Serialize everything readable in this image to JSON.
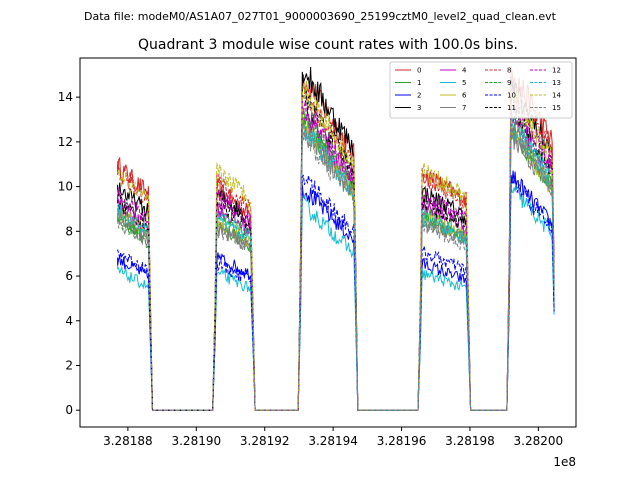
{
  "figure": {
    "suptitle": "Data file: modeM0/AS1A07_027T01_9000003690_25199cztM0_level2_quad_clean.evt",
    "title": "Quadrant 3 module wise count rates with 100.0s bins.",
    "x_offset_label": "1e8"
  },
  "chart_data": {
    "type": "line",
    "title": "Quadrant 3 module wise count rates with 100.0s bins.",
    "xlabel": "",
    "ylabel": "",
    "x_offset": "1e8",
    "xlim": [
      3.281866,
      3.282011
    ],
    "ylim": [
      -0.75,
      15.75
    ],
    "x_ticks": [
      3.28188,
      3.2819,
      3.28192,
      3.28194,
      3.28196,
      3.28198,
      3.282
    ],
    "x_tick_labels": [
      "3.28188",
      "3.28190",
      "3.28192",
      "3.28194",
      "3.28196",
      "3.28198",
      "3.28200"
    ],
    "y_ticks": [
      0,
      2,
      4,
      6,
      8,
      10,
      12,
      14
    ],
    "y_tick_labels": [
      "0",
      "2",
      "4",
      "6",
      "8",
      "10",
      "12",
      "14"
    ],
    "grid": false,
    "legend_placement": "top-right",
    "legend_columns": 4,
    "segments": [
      [
        3.281877,
        3.281886
      ],
      [
        3.281906,
        3.281916
      ],
      [
        3.281931,
        3.281946
      ],
      [
        3.281966,
        3.281979
      ],
      [
        3.281992,
        3.282004
      ]
    ],
    "series": [
      {
        "name": "0",
        "color": "#d62728",
        "dash": false,
        "levels": [
          10.5,
          9.5,
          14.3,
          10.2,
          14.5
        ]
      },
      {
        "name": "1",
        "color": "#2ca02c",
        "dash": false,
        "levels": [
          8.3,
          8.0,
          12.4,
          8.5,
          12.0
        ]
      },
      {
        "name": "2",
        "color": "#0000ff",
        "dash": false,
        "levels": [
          6.5,
          6.6,
          9.5,
          6.3,
          10.0
        ]
      },
      {
        "name": "3",
        "color": "#000000",
        "dash": false,
        "levels": [
          9.6,
          9.3,
          14.6,
          9.4,
          13.8
        ]
      },
      {
        "name": "4",
        "color": "#bf00bf",
        "dash": false,
        "levels": [
          8.8,
          8.7,
          12.7,
          8.9,
          12.7
        ]
      },
      {
        "name": "5",
        "color": "#17becf",
        "dash": false,
        "levels": [
          6.0,
          5.9,
          8.8,
          5.9,
          9.5
        ]
      },
      {
        "name": "6",
        "color": "#bcbd22",
        "dash": false,
        "levels": [
          8.6,
          8.1,
          12.2,
          8.4,
          12.0
        ]
      },
      {
        "name": "7",
        "color": "#7f7f7f",
        "dash": false,
        "levels": [
          8.4,
          7.9,
          12.0,
          8.2,
          11.8
        ]
      },
      {
        "name": "8",
        "color": "#d62728",
        "dash": true,
        "levels": [
          10.3,
          9.8,
          13.6,
          10.1,
          13.8
        ]
      },
      {
        "name": "9",
        "color": "#2ca02c",
        "dash": true,
        "levels": [
          8.2,
          8.5,
          12.6,
          8.3,
          12.5
        ]
      },
      {
        "name": "10",
        "color": "#0000ff",
        "dash": true,
        "levels": [
          6.8,
          6.3,
          10.0,
          6.8,
          9.8
        ]
      },
      {
        "name": "11",
        "color": "#000000",
        "dash": true,
        "levels": [
          9.0,
          9.0,
          13.4,
          9.0,
          13.0
        ]
      },
      {
        "name": "12",
        "color": "#bf00bf",
        "dash": true,
        "levels": [
          9.2,
          9.2,
          13.0,
          9.3,
          13.2
        ]
      },
      {
        "name": "13",
        "color": "#17becf",
        "dash": true,
        "levels": [
          8.6,
          8.4,
          12.1,
          8.3,
          12.3
        ]
      },
      {
        "name": "14",
        "color": "#bcbd22",
        "dash": true,
        "levels": [
          10.1,
          10.3,
          13.8,
          10.3,
          13.5
        ]
      },
      {
        "name": "15",
        "color": "#7f7f7f",
        "dash": true,
        "levels": [
          8.1,
          7.8,
          11.8,
          8.0,
          12.1
        ]
      }
    ]
  }
}
